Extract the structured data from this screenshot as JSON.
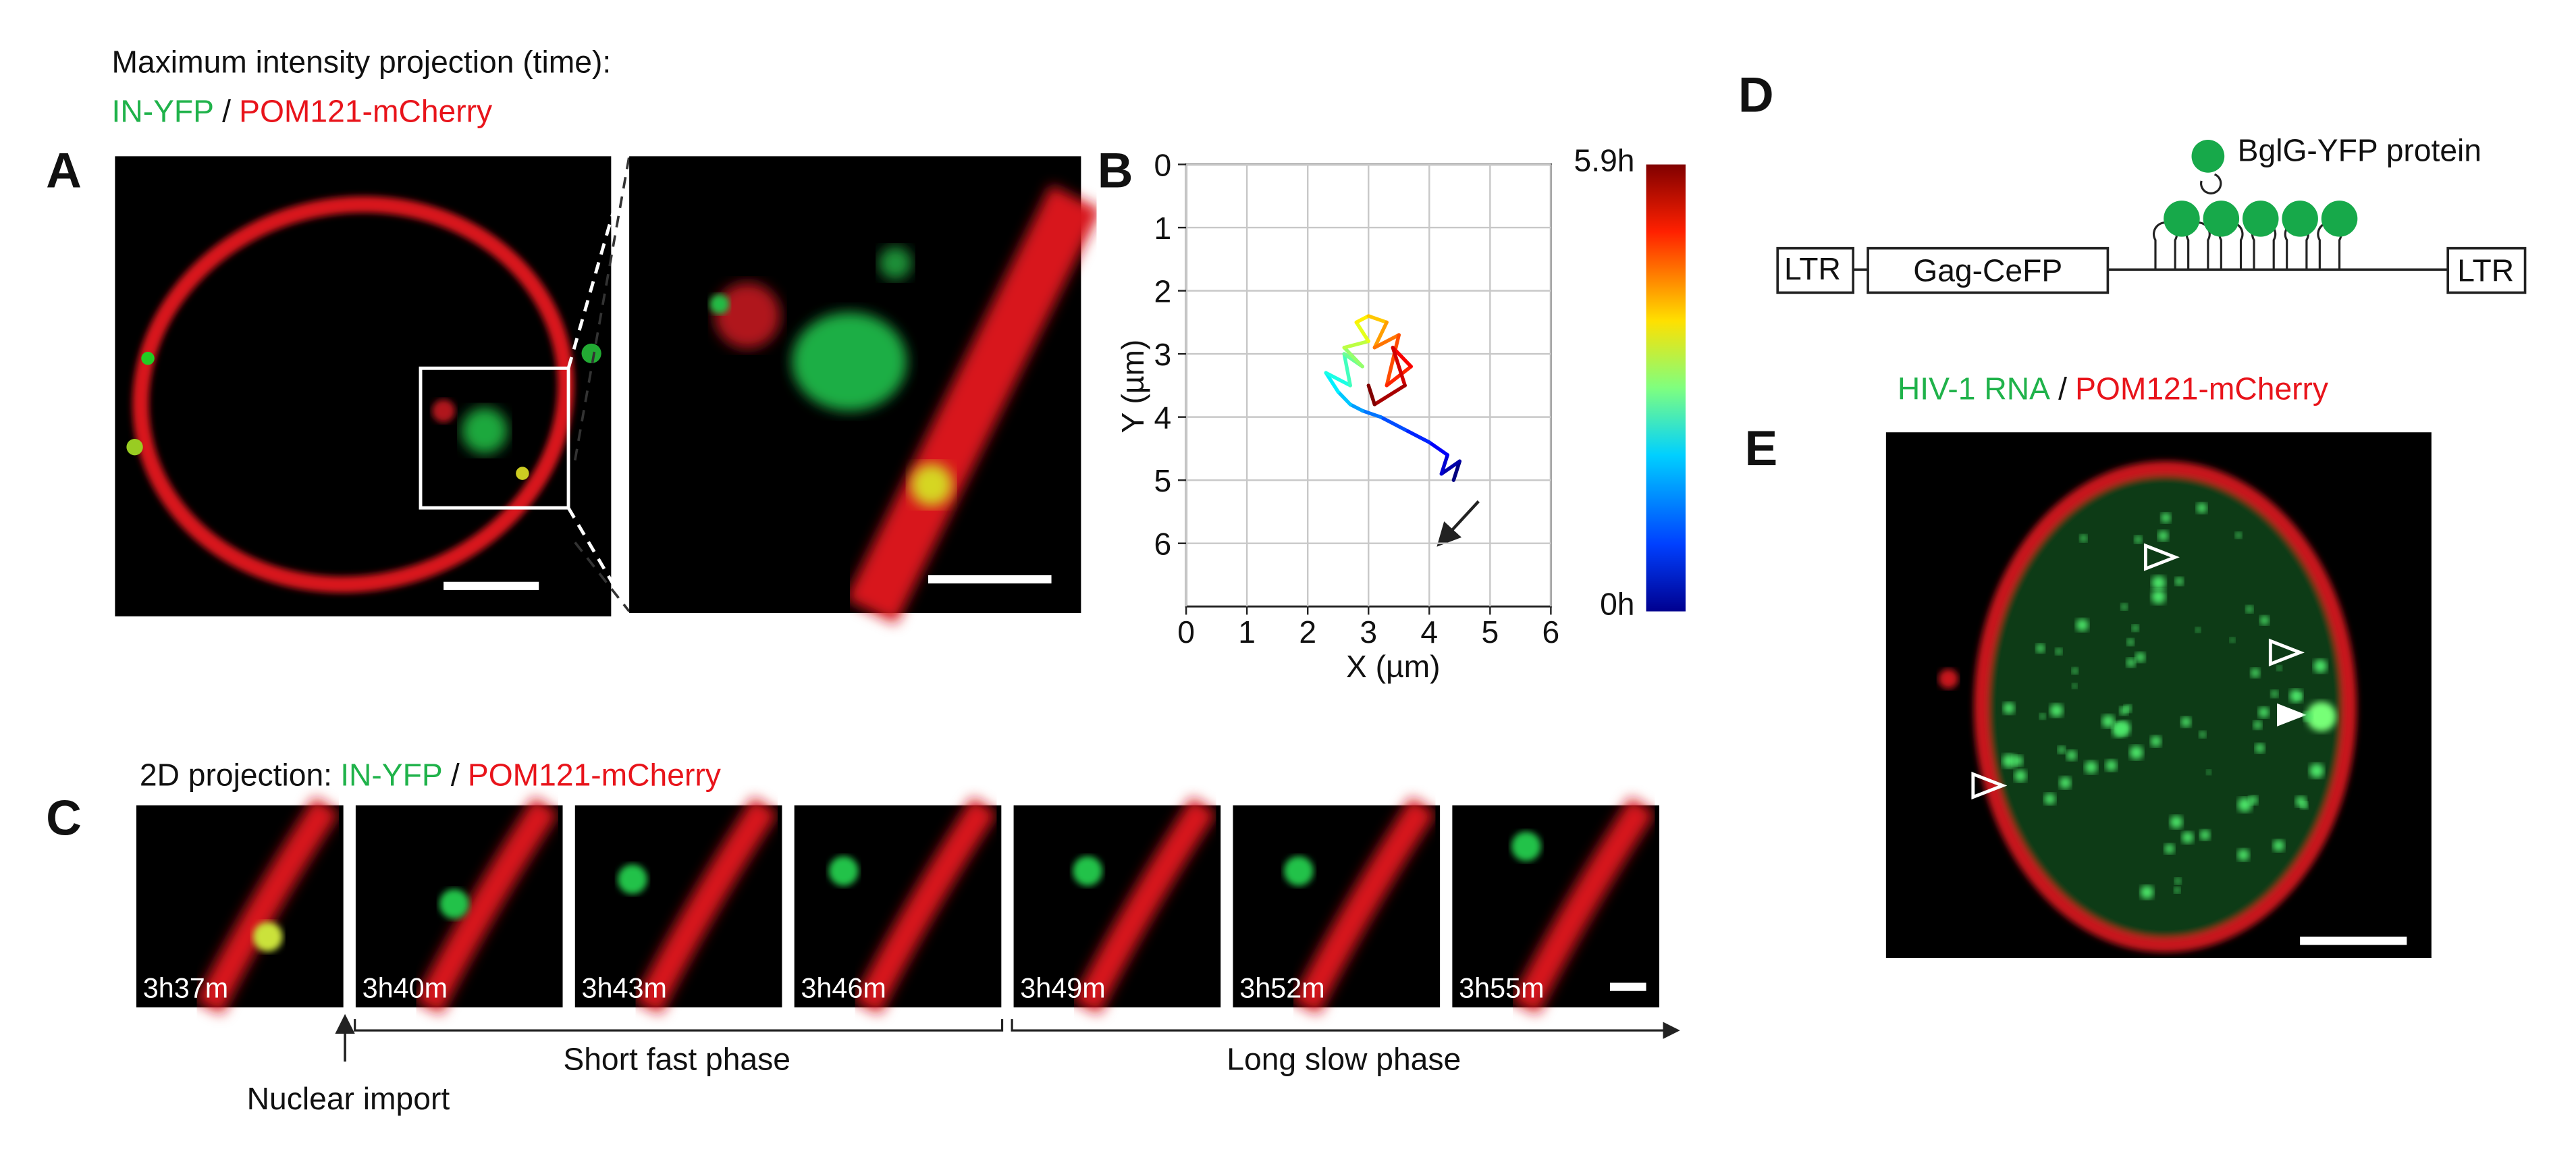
{
  "panel_labels": [
    "A",
    "B",
    "C",
    "D",
    "E"
  ],
  "panel_a": {
    "title": "Maximum intensity projection (time):",
    "green_label": "IN-YFP",
    "separator": "/",
    "red_label": "POM121-mCherry"
  },
  "chart_data": {
    "type": "line",
    "x_label": "X (µm)",
    "y_label": "Y (µm)",
    "x": [
      4.4,
      4.5,
      4.2,
      4.3,
      4.0,
      3.6,
      3.2,
      2.9,
      2.7,
      2.5,
      2.3,
      2.7,
      2.6,
      2.9,
      2.6,
      3.0,
      2.8,
      3.0,
      3.3,
      3.1,
      3.5,
      3.3,
      3.7,
      3.4,
      3.6,
      3.1,
      3.0
    ],
    "values": [
      5.0,
      4.7,
      4.9,
      4.6,
      4.4,
      4.2,
      4.0,
      3.9,
      3.8,
      3.6,
      3.3,
      3.5,
      3.0,
      3.2,
      2.9,
      2.8,
      2.5,
      2.4,
      2.5,
      2.9,
      2.7,
      3.5,
      3.2,
      2.9,
      3.5,
      3.8,
      3.5
    ],
    "xlim": [
      0,
      6
    ],
    "ylim": [
      7,
      0
    ],
    "xticks": [
      0,
      1,
      2,
      3,
      4,
      5,
      6
    ],
    "yticks": [
      0,
      1,
      2,
      3,
      4,
      5,
      6
    ],
    "grid": true,
    "colorbar": {
      "max_label": "5.9h",
      "min_label": "0h"
    }
  },
  "panel_c": {
    "title": "2D projection:",
    "green_label": "IN-YFP",
    "separator": "/",
    "red_label": "POM121-mCherry",
    "timestamps": [
      "3h37m",
      "3h40m",
      "3h43m",
      "3h46m",
      "3h49m",
      "3h52m",
      "3h55m"
    ],
    "annotations": {
      "import": "Nuclear import",
      "fast": "Short fast phase",
      "slow": "Long slow phase"
    }
  },
  "panel_d": {
    "ltr_left": "LTR",
    "gag": "Gag-CeFP",
    "ltr_right": "LTR",
    "protein": "BglG-YFP protein"
  },
  "panel_e": {
    "green_label": "HIV-1 RNA",
    "separator": "/",
    "red_label": "POM121-mCherry"
  }
}
